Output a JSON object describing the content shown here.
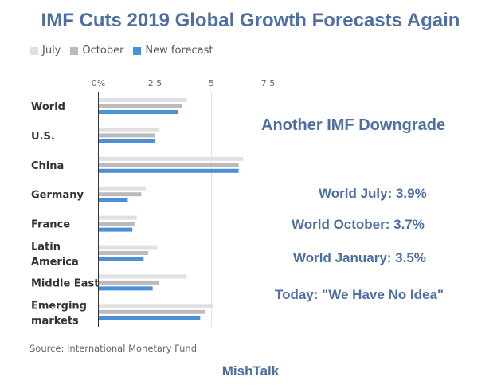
{
  "chart_data": {
    "type": "bar",
    "orientation": "horizontal",
    "title": "IMF Cuts 2019 Global Growth Forecasts Again",
    "xlabel": "",
    "ylabel": "",
    "xlim": [
      0,
      7.5
    ],
    "xticks": [
      0,
      2.5,
      5,
      7.5
    ],
    "xtick_labels": [
      "0%",
      "2.5",
      "5",
      "7.5"
    ],
    "grid": true,
    "legend_position": "top-left",
    "categories": [
      [
        "World"
      ],
      [
        "U.S."
      ],
      [
        "China"
      ],
      [
        "Germany"
      ],
      [
        "France"
      ],
      [
        "Latin",
        "America"
      ],
      [
        "Middle East"
      ],
      [
        "Emerging",
        "markets"
      ]
    ],
    "series": [
      {
        "name": "July",
        "color": "#e0e0e0",
        "values": [
          3.9,
          2.7,
          6.4,
          2.1,
          1.7,
          2.6,
          3.9,
          5.1
        ]
      },
      {
        "name": "October",
        "color": "#bbbbbb",
        "values": [
          3.7,
          2.5,
          6.2,
          1.9,
          1.6,
          2.2,
          2.7,
          4.7
        ]
      },
      {
        "name": "New forecast",
        "color": "#4a90d9",
        "values": [
          3.5,
          2.5,
          6.2,
          1.3,
          1.5,
          2.0,
          2.4,
          4.5
        ]
      }
    ],
    "source": "Source: International Monetary Fund"
  },
  "annotations": {
    "headline": "Another IMF Downgrade",
    "lines": [
      "World July: 3.9%",
      "World October: 3.7%",
      "World January: 3.5%",
      "Today: \"We Have No Idea\""
    ]
  },
  "branding": "MishTalk",
  "colors": {
    "title": "#4f6fa3",
    "july": "#e0e0e0",
    "october": "#bbbbbb",
    "new_forecast": "#4a90d9"
  }
}
